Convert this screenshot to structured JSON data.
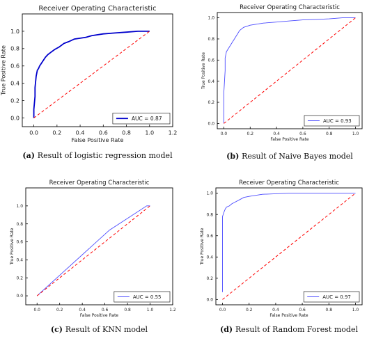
{
  "chart_data": [
    {
      "type": "line",
      "panel_id": "a",
      "title": "Receiver Operating Characteristic",
      "xlabel": "False Positive Rate",
      "ylabel": "True Positive Rate",
      "xlim": [
        -0.1,
        1.2
      ],
      "ylim": [
        -0.1,
        1.2
      ],
      "xticks": [
        "0.0",
        "0.2",
        "0.4",
        "0.6",
        "0.8",
        "1.0",
        "1.2"
      ],
      "yticks": [
        "0.0",
        "0.2",
        "0.4",
        "0.6",
        "0.8",
        "1.0"
      ],
      "legend_position": "lower-right",
      "caption_letter": "(a)",
      "caption": "Result of logistic regression model",
      "series": [
        {
          "name": "AUC = 0.87",
          "color": "#0000cc",
          "x": [
            0.0,
            0.0,
            0.01,
            0.01,
            0.02,
            0.03,
            0.04,
            0.05,
            0.06,
            0.08,
            0.1,
            0.12,
            0.15,
            0.18,
            0.22,
            0.26,
            0.3,
            0.35,
            0.4,
            0.45,
            0.5,
            0.6,
            0.7,
            0.8,
            0.9,
            1.0
          ],
          "y": [
            0.0,
            0.1,
            0.25,
            0.35,
            0.48,
            0.55,
            0.57,
            0.6,
            0.62,
            0.66,
            0.7,
            0.73,
            0.76,
            0.79,
            0.82,
            0.86,
            0.88,
            0.91,
            0.92,
            0.93,
            0.95,
            0.97,
            0.98,
            0.99,
            1.0,
            1.0
          ]
        },
        {
          "name": "",
          "color": "#ff0000",
          "dashed": true,
          "x": [
            0,
            1
          ],
          "y": [
            0,
            1
          ]
        }
      ]
    },
    {
      "type": "line",
      "panel_id": "b",
      "title": "Receiver Operating Characteristic",
      "xlabel": "False Positive Rate",
      "ylabel": "True Positive Rate",
      "xlim": [
        -0.05,
        1.05
      ],
      "ylim": [
        -0.05,
        1.05
      ],
      "xticks": [
        "0.0",
        "0.2",
        "0.4",
        "0.6",
        "0.8",
        "1.0"
      ],
      "yticks": [
        "0.0",
        "0.2",
        "0.4",
        "0.6",
        "0.8",
        "1.0"
      ],
      "legend_position": "lower-right",
      "caption_letter": "(b)",
      "caption": "Result of Naive Bayes model",
      "series": [
        {
          "name": "AUC = 0.93",
          "color": "#4a4aff",
          "x": [
            0.0,
            0.0,
            0.01,
            0.01,
            0.02,
            0.04,
            0.06,
            0.08,
            0.1,
            0.12,
            0.15,
            0.2,
            0.3,
            0.4,
            0.5,
            0.6,
            0.7,
            0.8,
            0.9,
            1.0
          ],
          "y": [
            0.0,
            0.3,
            0.5,
            0.62,
            0.68,
            0.72,
            0.76,
            0.8,
            0.84,
            0.88,
            0.91,
            0.93,
            0.95,
            0.96,
            0.97,
            0.98,
            0.985,
            0.99,
            1.0,
            1.0
          ]
        },
        {
          "name": "",
          "color": "#ff0000",
          "dashed": true,
          "x": [
            0,
            1
          ],
          "y": [
            0,
            1
          ]
        }
      ]
    },
    {
      "type": "line",
      "panel_id": "c",
      "title": "Receiver Operating Characteristic",
      "xlabel": "False Positive Rate",
      "ylabel": "True Positive Rate",
      "xlim": [
        -0.1,
        1.2
      ],
      "ylim": [
        -0.1,
        1.2
      ],
      "xticks": [
        "0.0",
        "0.2",
        "0.4",
        "0.6",
        "0.8",
        "1.0",
        "1.2"
      ],
      "yticks": [
        "0.0",
        "0.2",
        "0.4",
        "0.6",
        "0.8",
        "1.0"
      ],
      "legend_position": "lower-right",
      "caption_letter": "(c)",
      "caption": "Result of KNN model",
      "series": [
        {
          "name": "AUC = 0.55",
          "color": "#4a4aff",
          "x": [
            0.0,
            0.64,
            0.97,
            1.0
          ],
          "y": [
            0.0,
            0.73,
            1.0,
            1.0
          ]
        },
        {
          "name": "",
          "color": "#ff0000",
          "dashed": true,
          "x": [
            0,
            1
          ],
          "y": [
            0,
            1
          ]
        }
      ]
    },
    {
      "type": "line",
      "panel_id": "d",
      "title": "Receiver Operating Characteristic",
      "xlabel": "False Positive Rate",
      "ylabel": "True Positive Rate",
      "xlim": [
        -0.05,
        1.05
      ],
      "ylim": [
        -0.05,
        1.05
      ],
      "xticks": [
        "0.0",
        "0.2",
        "0.4",
        "0.6",
        "0.8",
        "1.0"
      ],
      "yticks": [
        "0.0",
        "0.2",
        "0.4",
        "0.6",
        "0.8",
        "1.0"
      ],
      "legend_position": "lower-right",
      "caption_letter": "(d)",
      "caption": "Result of Random Forest model",
      "series": [
        {
          "name": "AUC = 0.97",
          "color": "#4a4aff",
          "x": [
            0.0,
            0.0,
            0.0,
            0.01,
            0.02,
            0.03,
            0.05,
            0.07,
            0.1,
            0.13,
            0.16,
            0.2,
            0.25,
            0.3,
            0.4,
            0.5,
            0.7,
            1.0
          ],
          "y": [
            0.07,
            0.55,
            0.78,
            0.82,
            0.85,
            0.87,
            0.88,
            0.9,
            0.92,
            0.94,
            0.96,
            0.97,
            0.98,
            0.99,
            0.995,
            1.0,
            1.0,
            1.0
          ]
        },
        {
          "name": "",
          "color": "#ff0000",
          "dashed": true,
          "x": [
            0,
            1
          ],
          "y": [
            0,
            1
          ]
        }
      ]
    }
  ]
}
